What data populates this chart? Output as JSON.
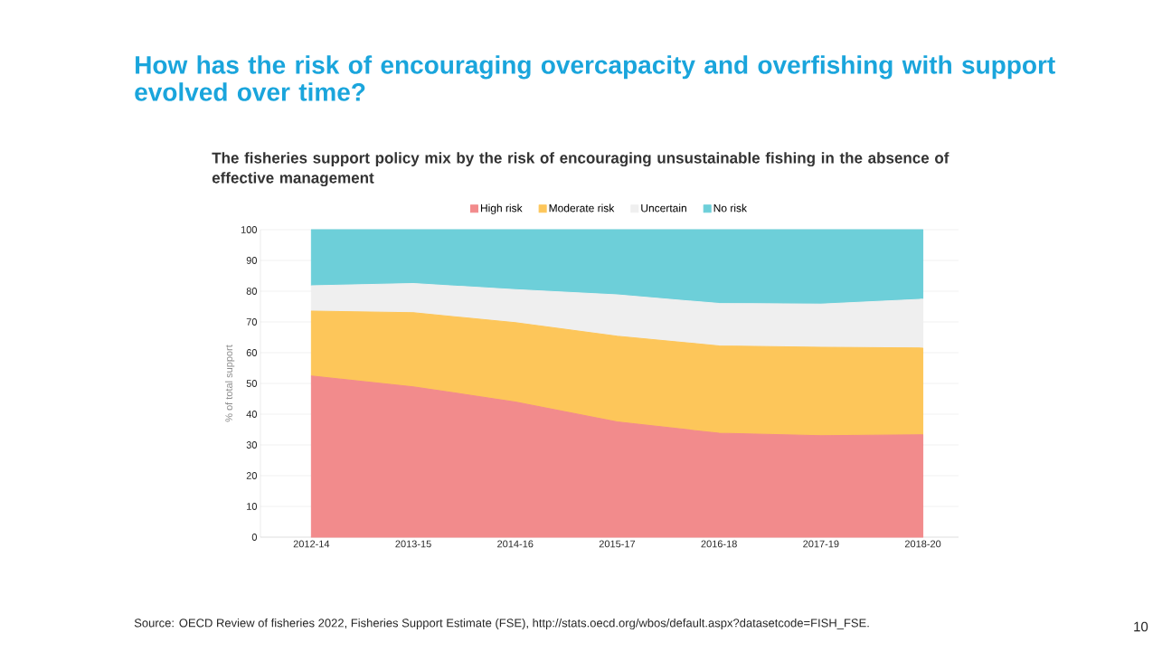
{
  "chart_data": {
    "type": "area",
    "stacked": true,
    "title": "How has the risk of encouraging overcapacity and overfishing with support evolved over time?",
    "subtitle": "The fisheries support policy mix by the risk of encouraging unsustainable fishing in the absence of effective management",
    "ylabel": "% of total support",
    "categories": [
      "2012-14",
      "2013-15",
      "2014-16",
      "2015-17",
      "2016-18",
      "2017-19",
      "2018-20"
    ],
    "series": [
      {
        "name": "High risk",
        "color": "#f28b8c",
        "values": [
          52.4,
          48.9,
          44.0,
          37.5,
          33.8,
          33.0,
          33.3
        ]
      },
      {
        "name": "Moderate risk",
        "color": "#fdc65a",
        "values": [
          21.1,
          24.1,
          25.8,
          27.9,
          28.4,
          28.8,
          28.2
        ]
      },
      {
        "name": "Uncertain",
        "color": "#efefef",
        "values": [
          8.3,
          9.5,
          10.7,
          13.4,
          13.8,
          14.0,
          15.9
        ]
      },
      {
        "name": "No risk",
        "color": "#6dcfd9",
        "values": [
          18.2,
          17.5,
          19.5,
          21.2,
          24.0,
          24.2,
          22.6
        ]
      }
    ],
    "ylim": [
      0,
      100
    ],
    "yticks": [
      0,
      10,
      20,
      30,
      40,
      50,
      60,
      70,
      80,
      90,
      100
    ],
    "grid": "y",
    "legend": "top",
    "annotations": [
      "Source: OECD Review of fisheries 2022, Fisheries Support Estimate (FSE), http://stats.oecd.org/wbos/default.aspx?datasetcode=FISH_FSE.",
      "10"
    ]
  }
}
